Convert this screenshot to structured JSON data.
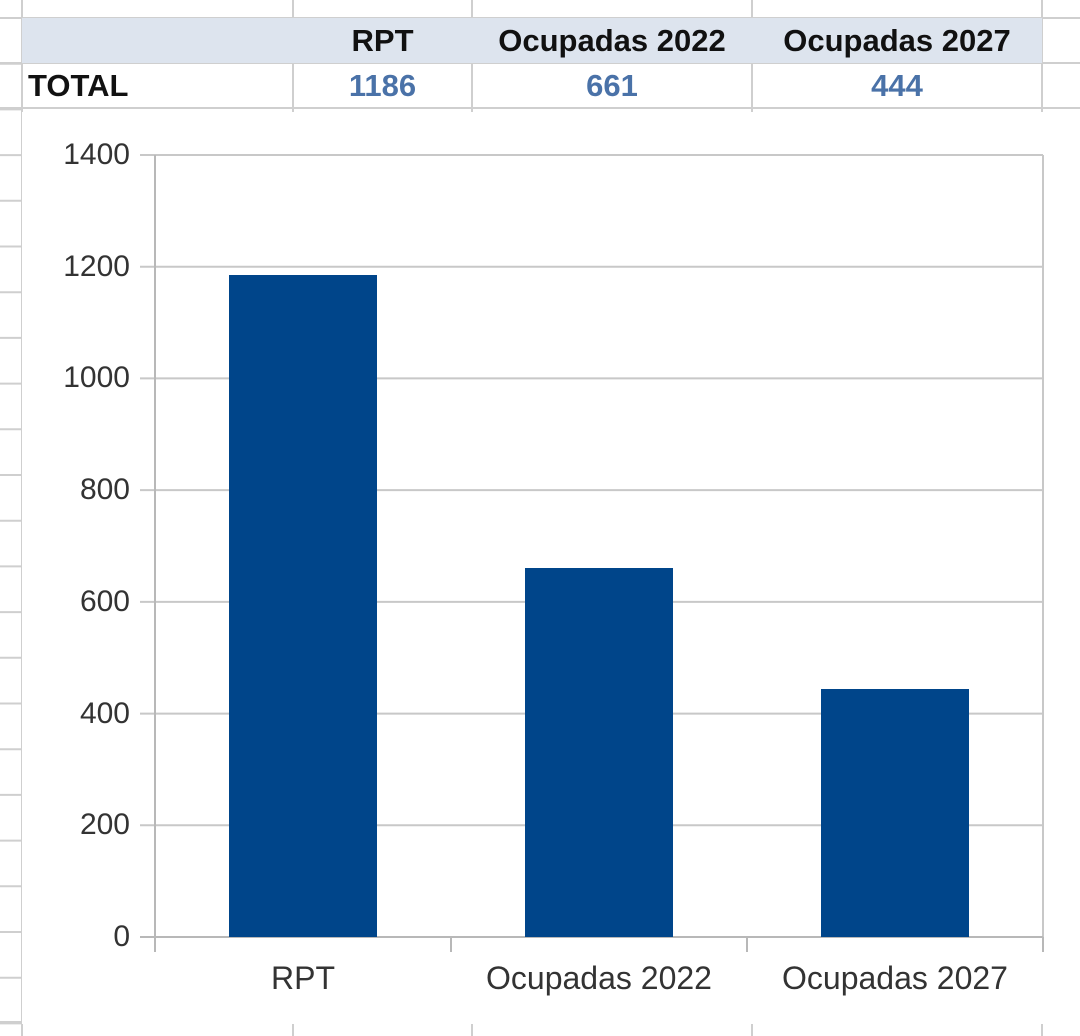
{
  "table": {
    "headers": [
      "",
      "RPT",
      "Ocupadas 2022",
      "Ocupadas 2027"
    ],
    "rows": [
      {
        "label": "TOTAL",
        "values": [
          "1186",
          "661",
          "444"
        ]
      }
    ]
  },
  "colors": {
    "bar": "#00458a",
    "header_bg": "#dde4ee",
    "value_text": "#4a72a8",
    "gridline": "#c8c8c8"
  },
  "chart_data": {
    "type": "bar",
    "title": "",
    "xlabel": "",
    "ylabel": "",
    "categories": [
      "RPT",
      "Ocupadas 2022",
      "Ocupadas 2027"
    ],
    "values": [
      1186,
      661,
      444
    ],
    "ylim": [
      0,
      1400
    ],
    "yticks": [
      0,
      200,
      400,
      600,
      800,
      1000,
      1200,
      1400
    ],
    "ytick_labels": [
      "0",
      "200",
      "400",
      "600",
      "800",
      "1000",
      "1200",
      "1400"
    ],
    "grid": true,
    "legend": null
  }
}
